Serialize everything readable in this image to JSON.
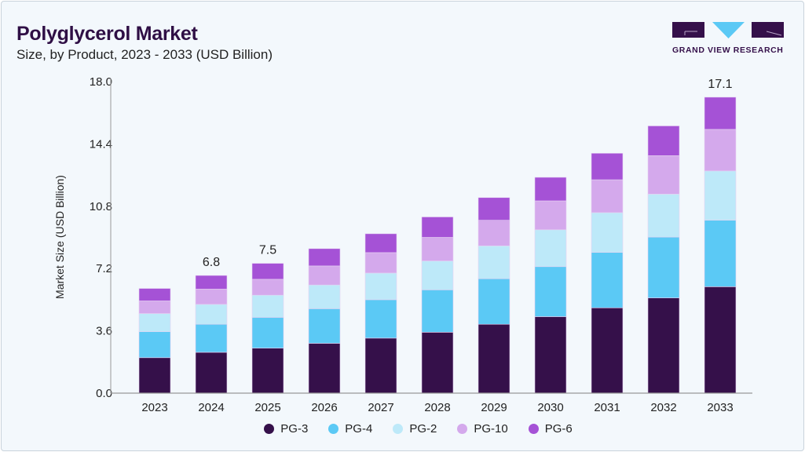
{
  "header": {
    "title": "Polyglycerol Market",
    "subtitle": "Size, by Product, 2023 - 2033 (USD Billion)"
  },
  "logo": {
    "text": "GRAND VIEW RESEARCH"
  },
  "chart_data": {
    "type": "bar",
    "stacked": true,
    "title": "Polyglycerol Market",
    "subtitle": "Size, by Product, 2023 - 2033 (USD Billion)",
    "xlabel": "",
    "ylabel": "Market Size (USD Billion)",
    "ylim": [
      0,
      18
    ],
    "yticks": [
      "0.0",
      "3.6",
      "7.2",
      "10.8",
      "14.4",
      "18.0"
    ],
    "grid": false,
    "legend_position": "bottom",
    "categories": [
      "2023",
      "2024",
      "2025",
      "2026",
      "2027",
      "2028",
      "2029",
      "2030",
      "2031",
      "2032",
      "2033"
    ],
    "series": [
      {
        "name": "PG-3",
        "color": "#35104a",
        "values": [
          2.05,
          2.36,
          2.6,
          2.88,
          3.18,
          3.52,
          3.98,
          4.42,
          4.93,
          5.5,
          6.15
        ]
      },
      {
        "name": "PG-4",
        "color": "#5bc9f5",
        "values": [
          1.5,
          1.62,
          1.78,
          2.0,
          2.22,
          2.45,
          2.63,
          2.89,
          3.2,
          3.52,
          3.84
        ]
      },
      {
        "name": "PG-2",
        "color": "#bde9f9",
        "values": [
          1.05,
          1.15,
          1.28,
          1.37,
          1.54,
          1.67,
          1.9,
          2.13,
          2.3,
          2.48,
          2.85
        ]
      },
      {
        "name": "PG-10",
        "color": "#d4a9ec",
        "values": [
          0.73,
          0.88,
          0.92,
          1.1,
          1.18,
          1.36,
          1.48,
          1.67,
          1.9,
          2.22,
          2.4
        ]
      },
      {
        "name": "PG-6",
        "color": "#a552d6",
        "values": [
          0.72,
          0.79,
          0.92,
          1.0,
          1.09,
          1.18,
          1.31,
          1.36,
          1.53,
          1.72,
          1.86
        ]
      }
    ],
    "data_labels": [
      {
        "category": "2024",
        "text": "6.8"
      },
      {
        "category": "2025",
        "text": "7.5"
      },
      {
        "category": "2033",
        "text": "17.1"
      }
    ]
  }
}
